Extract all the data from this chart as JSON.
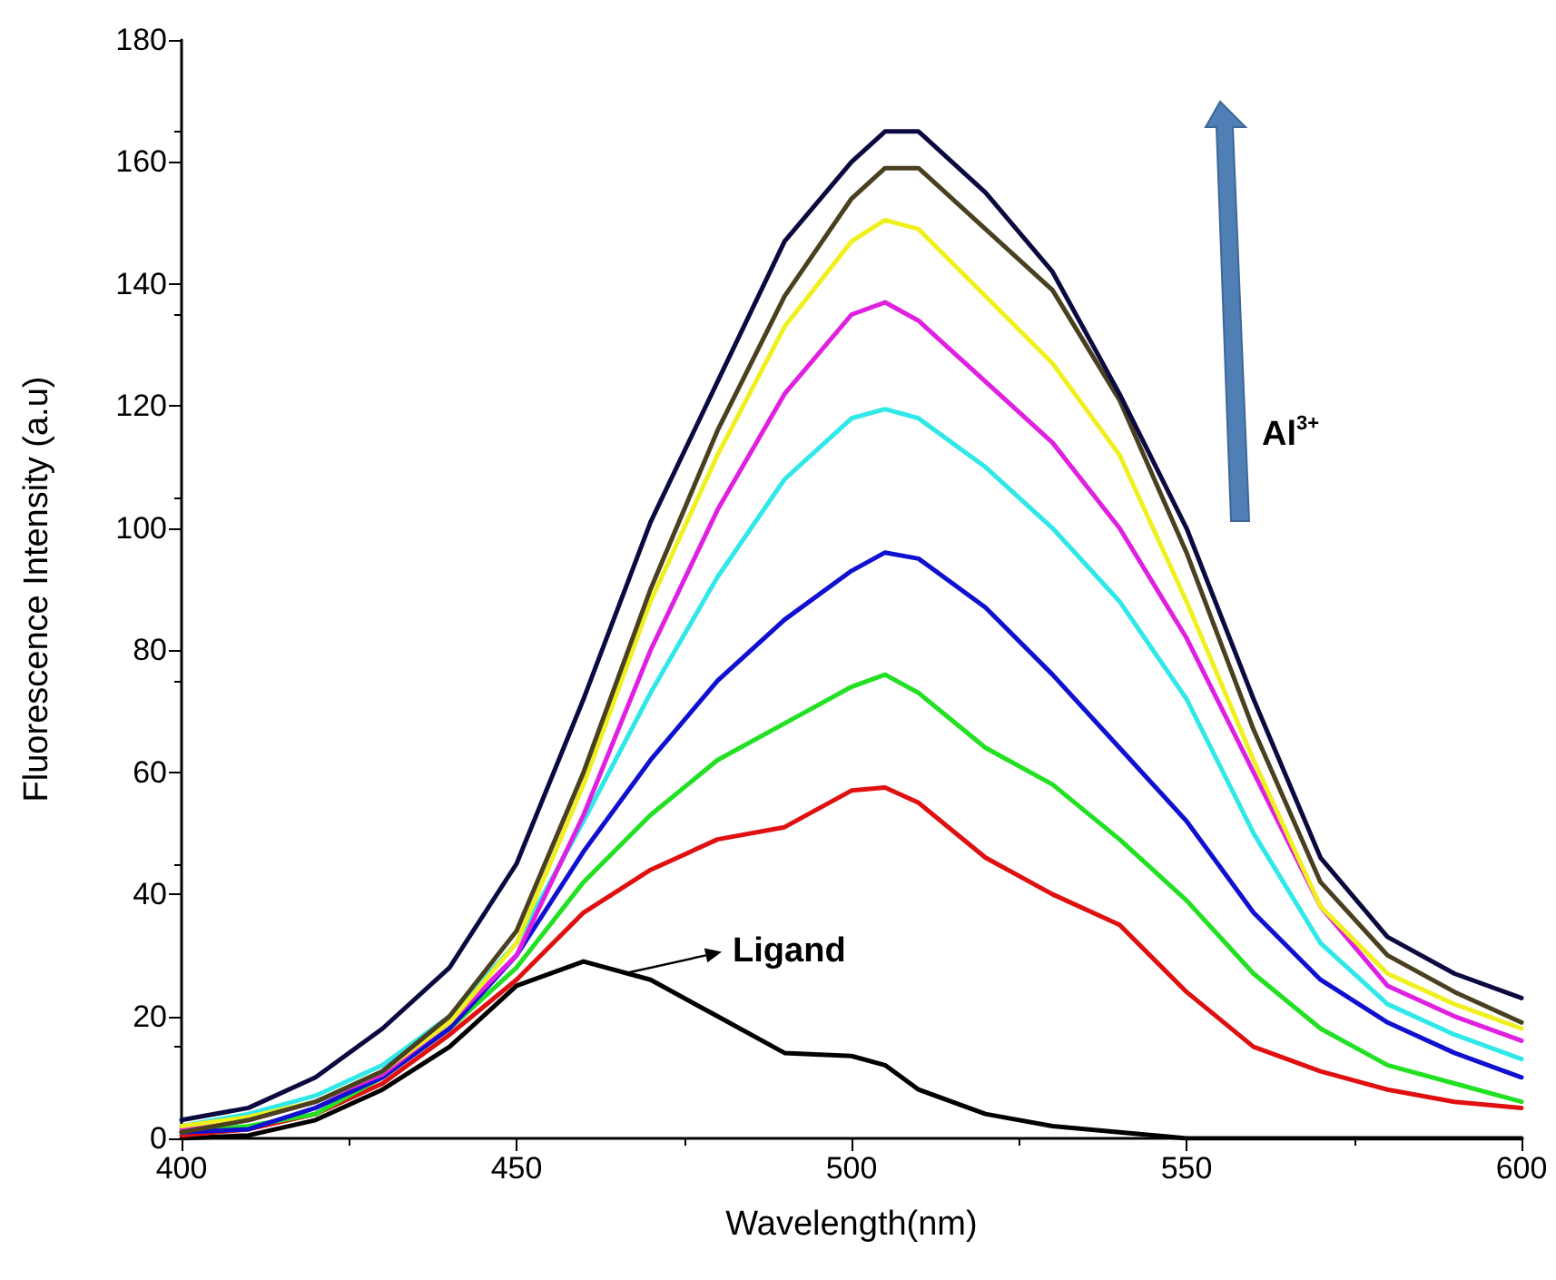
{
  "chart_data": {
    "type": "line",
    "xlabel": "Wavelength(nm)",
    "ylabel": "Fluorescence Intensity (a.u)",
    "x": [
      400,
      410,
      420,
      430,
      440,
      450,
      460,
      470,
      480,
      490,
      500,
      505,
      510,
      520,
      530,
      540,
      550,
      560,
      570,
      580,
      590,
      600
    ],
    "xlim": [
      400,
      600
    ],
    "xticks": [
      400,
      450,
      500,
      550,
      600
    ],
    "ylim": [
      0,
      180
    ],
    "yticks": [
      0,
      20,
      40,
      60,
      80,
      100,
      120,
      140,
      160,
      180
    ],
    "grid": false,
    "marker": "none",
    "line_style": "solid",
    "annotations": [
      {
        "text": "Ligand",
        "x": 466,
        "y": 27
      },
      "Al$^{3+}$"
    ],
    "series": [
      {
        "color": "#000000",
        "values": [
          0,
          0.5,
          3,
          8,
          15,
          25,
          29,
          26,
          20,
          14,
          13.5,
          12,
          8,
          4,
          2,
          1,
          0,
          0,
          0,
          0,
          0,
          0
        ]
      },
      {
        "color": "#e01010",
        "values": [
          0.5,
          1.5,
          4,
          9,
          17,
          26,
          37,
          44,
          49,
          51,
          57,
          57.5,
          55,
          46,
          40,
          35,
          24,
          15,
          11,
          8,
          6,
          5
        ]
      },
      {
        "color": "#22e022",
        "values": [
          1,
          2,
          4,
          10,
          18,
          28,
          42,
          53,
          62,
          68,
          74,
          76,
          73,
          64,
          58,
          49,
          39,
          27,
          18,
          12,
          9,
          6
        ]
      },
      {
        "color": "#1010d0",
        "values": [
          1,
          1.5,
          5,
          10,
          18,
          30,
          47,
          62,
          75,
          85,
          93,
          96,
          95,
          87,
          76,
          64,
          52,
          37,
          26,
          19,
          14,
          10
        ]
      },
      {
        "color": "#30e8e8",
        "values": [
          2,
          4,
          7,
          12,
          20,
          32,
          52,
          73,
          92,
          108,
          118,
          119.5,
          118,
          110,
          100,
          88,
          72,
          50,
          32,
          22,
          17,
          13
        ]
      },
      {
        "color": "#e020e0",
        "values": [
          1.5,
          3,
          6,
          10.5,
          19,
          30,
          53,
          80,
          103,
          122,
          135,
          137,
          134,
          124,
          114,
          100,
          82,
          60,
          38,
          25,
          20,
          16
        ]
      },
      {
        "color": "#f0f020",
        "values": [
          2,
          3.5,
          6,
          11,
          19,
          32,
          58,
          88,
          112,
          133,
          147,
          150.5,
          149,
          138,
          127,
          112,
          88,
          62,
          38,
          27,
          22,
          18
        ]
      },
      {
        "color": "#4a4020",
        "values": [
          1,
          3,
          6,
          11,
          20,
          34,
          60,
          90,
          116,
          138,
          154,
          159,
          159,
          149,
          139,
          121,
          96,
          67,
          42,
          30,
          24,
          19
        ]
      },
      {
        "color": "#0a0a40",
        "values": [
          3,
          5,
          10,
          18,
          28,
          45,
          72,
          101,
          124,
          147,
          160,
          165,
          165,
          155,
          142,
          122,
          100,
          72,
          46,
          33,
          27,
          23
        ]
      }
    ]
  }
}
